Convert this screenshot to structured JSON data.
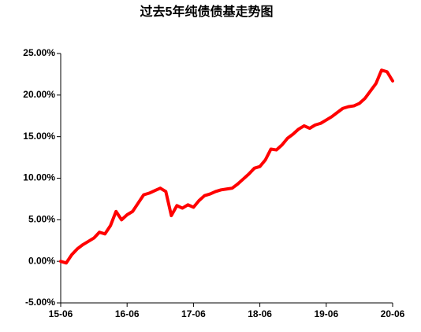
{
  "chart_data": {
    "type": "line",
    "title": "过去5年纯债债基走势图",
    "x": [
      0,
      1,
      2,
      3,
      4,
      5,
      6,
      7,
      8,
      9,
      10,
      11,
      12,
      13,
      14,
      15,
      16,
      17,
      18,
      19,
      20,
      21,
      22,
      23,
      24,
      25,
      26,
      27,
      28,
      29,
      30,
      31,
      32,
      33,
      34,
      35,
      36,
      37,
      38,
      39,
      40,
      41,
      42,
      43,
      44,
      45,
      46,
      47,
      48,
      49,
      50,
      51,
      52,
      53,
      54,
      55,
      56,
      57,
      58,
      59,
      60
    ],
    "series": [
      {
        "name": "纯债债基",
        "color": "#ff0000",
        "values": [
          0,
          -0.2,
          0.8,
          1.5,
          2.0,
          2.4,
          2.8,
          3.5,
          3.3,
          4.3,
          6.0,
          5.0,
          5.6,
          6.0,
          7.0,
          8.0,
          8.2,
          8.5,
          8.8,
          8.4,
          5.5,
          6.7,
          6.4,
          6.8,
          6.5,
          7.3,
          7.9,
          8.1,
          8.4,
          8.6,
          8.7,
          8.8,
          9.3,
          9.9,
          10.5,
          11.2,
          11.4,
          12.2,
          13.5,
          13.4,
          14.0,
          14.8,
          15.3,
          15.9,
          16.3,
          16.0,
          16.4,
          16.6,
          17.0,
          17.4,
          17.9,
          18.4,
          18.6,
          18.7,
          19.0,
          19.6,
          20.5,
          21.4,
          23.0,
          22.8,
          21.7
        ]
      }
    ],
    "xlim": [
      0,
      60
    ],
    "xticks": [
      {
        "value": 0,
        "label": "15-06"
      },
      {
        "value": 12,
        "label": "16-06"
      },
      {
        "value": 24,
        "label": "17-06"
      },
      {
        "value": 36,
        "label": "18-06"
      },
      {
        "value": 48,
        "label": "19-06"
      },
      {
        "value": 60,
        "label": "20-06"
      }
    ],
    "ylim": [
      -5,
      25
    ],
    "yticks": [
      {
        "value": -5,
        "label": "-5.00%"
      },
      {
        "value": 0,
        "label": "0.00%"
      },
      {
        "value": 5,
        "label": "5.00%"
      },
      {
        "value": 10,
        "label": "10.00%"
      },
      {
        "value": 15,
        "label": "15.00%"
      },
      {
        "value": 20,
        "label": "20.00%"
      },
      {
        "value": 25,
        "label": "25.00%"
      }
    ],
    "grid": false
  }
}
